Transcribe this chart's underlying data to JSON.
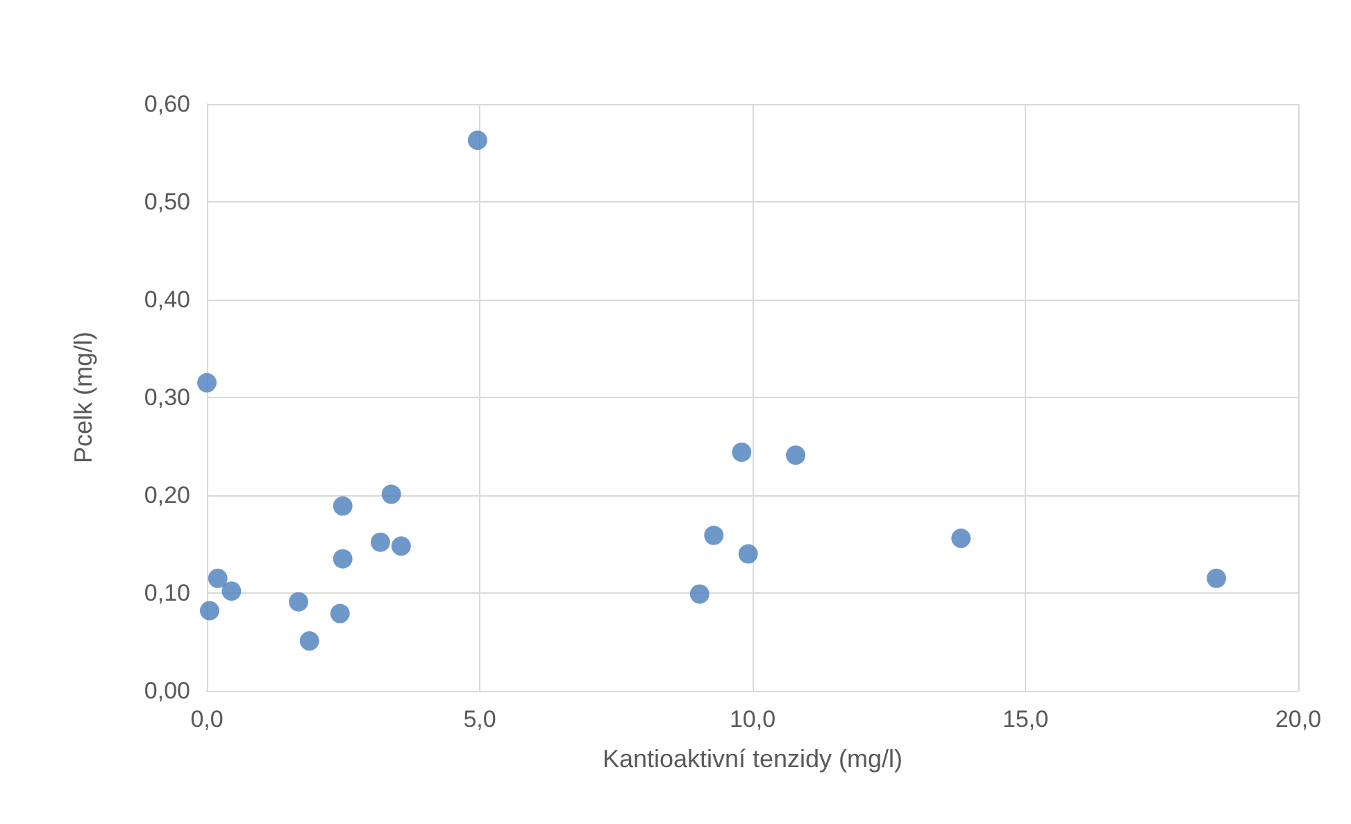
{
  "chart_data": {
    "type": "scatter",
    "xlabel": "Kantioaktivní tenzidy (mg/l)",
    "ylabel": "Pcelk (mg/l)",
    "color": "#4a7ebb",
    "marker": "circle",
    "grid": true,
    "x": [
      0,
      0.05,
      0.2,
      0.45,
      1.68,
      1.88,
      2.44,
      2.49,
      2.49,
      3.18,
      3.38,
      3.56,
      4.96,
      9.03,
      9.29,
      9.8,
      9.92,
      10.79,
      13.82,
      18.5
    ],
    "values": [
      0.315,
      0.082,
      0.115,
      0.102,
      0.091,
      0.051,
      0.079,
      0.135,
      0.189,
      0.152,
      0.201,
      0.148,
      0.563,
      0.099,
      0.159,
      0.244,
      0.14,
      0.241,
      0.156,
      0.115
    ],
    "xlim": [
      0,
      20
    ],
    "ylim": [
      0,
      0.6
    ],
    "xticks": [
      {
        "value": 0,
        "label": "0,0"
      },
      {
        "value": 5,
        "label": "5,0"
      },
      {
        "value": 10,
        "label": "10,0"
      },
      {
        "value": 15,
        "label": "15,0"
      },
      {
        "value": 20,
        "label": "20,0"
      }
    ],
    "yticks": [
      {
        "value": 0,
        "label": "0,00"
      },
      {
        "value": 0.1,
        "label": "0,10"
      },
      {
        "value": 0.2,
        "label": "0,20"
      },
      {
        "value": 0.3,
        "label": "0,30"
      },
      {
        "value": 0.4,
        "label": "0,40"
      },
      {
        "value": 0.5,
        "label": "0,50"
      },
      {
        "value": 0.6,
        "label": "0,60"
      }
    ]
  }
}
